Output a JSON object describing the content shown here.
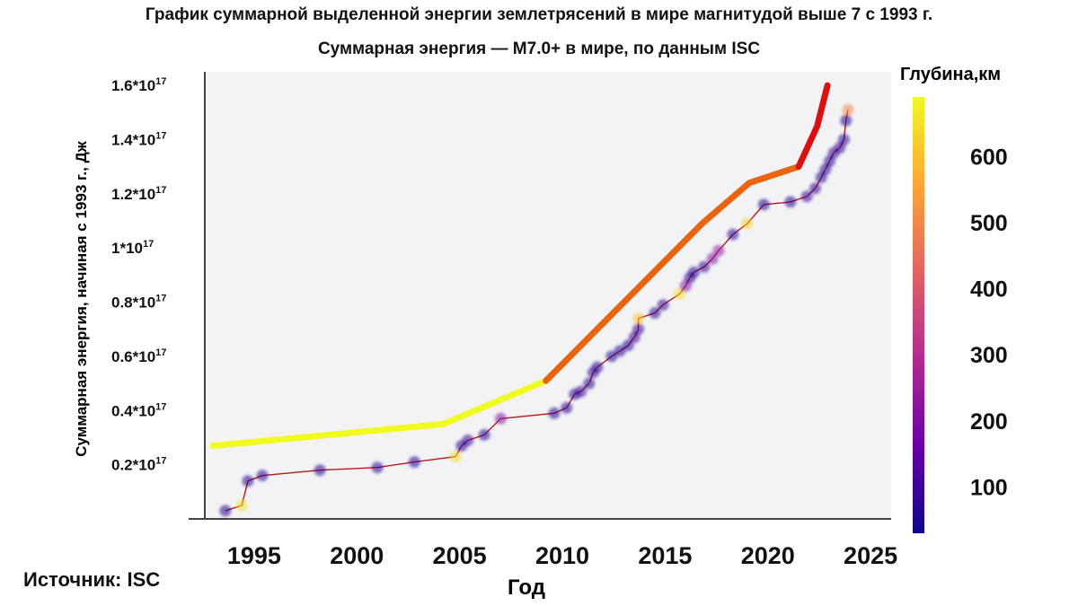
{
  "chart_data": {
    "type": "scatter",
    "title": "График суммарной выделенной энергии землетрясений в мире магнитудой выше 7 с 1993 г.",
    "subtitle": "Суммарная энергия — M7.0+ в мире, по данным ISC",
    "xlabel": "Год",
    "ylabel": "Суммарная энергия, начиная с 1993 г., Дж",
    "xlim": [
      1992.6,
      2026.0
    ],
    "ylim": [
      0.0,
      1.65
    ],
    "x_ticks": [
      1995,
      2000,
      2005,
      2010,
      2015,
      2020,
      2025
    ],
    "y_ticks": [
      {
        "value": 0.2,
        "label": "0.2*10",
        "exp": "17"
      },
      {
        "value": 0.4,
        "label": "0.4*10",
        "exp": "17"
      },
      {
        "value": 0.6,
        "label": "0.6*10",
        "exp": "17"
      },
      {
        "value": 0.8,
        "label": "0.8*10",
        "exp": "17"
      },
      {
        "value": 1.0,
        "label": "1*10",
        "exp": "17"
      },
      {
        "value": 1.2,
        "label": "1.2*10",
        "exp": "17"
      },
      {
        "value": 1.4,
        "label": "1.4*10",
        "exp": "17"
      },
      {
        "value": 1.6,
        "label": "1.6*10",
        "exp": "17"
      }
    ],
    "grid": false,
    "colorbar": {
      "label": "Глубина,км",
      "ticks": [
        100,
        200,
        300,
        400,
        500,
        600
      ],
      "range": [
        30,
        690
      ],
      "colors": [
        "#0d0887",
        "#6a00a8",
        "#b12a90",
        "#e16462",
        "#fca636",
        "#f0f921"
      ]
    },
    "series": [
      {
        "kind": "points",
        "line_color": "#b51a1a",
        "points": [
          {
            "x": 1993.6,
            "y": 0.03,
            "d": 60
          },
          {
            "x": 1994.4,
            "y": 0.05,
            "d": 650
          },
          {
            "x": 1994.7,
            "y": 0.14,
            "d": 60
          },
          {
            "x": 1995.4,
            "y": 0.16,
            "d": 60
          },
          {
            "x": 1998.2,
            "y": 0.18,
            "d": 60
          },
          {
            "x": 2001.0,
            "y": 0.19,
            "d": 60
          },
          {
            "x": 2002.8,
            "y": 0.21,
            "d": 60
          },
          {
            "x": 2004.8,
            "y": 0.23,
            "d": 640
          },
          {
            "x": 2005.1,
            "y": 0.27,
            "d": 60
          },
          {
            "x": 2005.4,
            "y": 0.29,
            "d": 80
          },
          {
            "x": 2006.2,
            "y": 0.31,
            "d": 60
          },
          {
            "x": 2007.0,
            "y": 0.37,
            "d": 200
          },
          {
            "x": 2009.6,
            "y": 0.39,
            "d": 60
          },
          {
            "x": 2010.2,
            "y": 0.41,
            "d": 60
          },
          {
            "x": 2010.6,
            "y": 0.46,
            "d": 60
          },
          {
            "x": 2010.9,
            "y": 0.47,
            "d": 80
          },
          {
            "x": 2011.3,
            "y": 0.5,
            "d": 60
          },
          {
            "x": 2011.5,
            "y": 0.54,
            "d": 80
          },
          {
            "x": 2011.7,
            "y": 0.56,
            "d": 60
          },
          {
            "x": 2012.4,
            "y": 0.6,
            "d": 60
          },
          {
            "x": 2012.8,
            "y": 0.62,
            "d": 60
          },
          {
            "x": 2013.2,
            "y": 0.64,
            "d": 60
          },
          {
            "x": 2013.5,
            "y": 0.67,
            "d": 80
          },
          {
            "x": 2013.7,
            "y": 0.7,
            "d": 80
          },
          {
            "x": 2013.7,
            "y": 0.74,
            "d": 610
          },
          {
            "x": 2014.5,
            "y": 0.76,
            "d": 60
          },
          {
            "x": 2014.9,
            "y": 0.79,
            "d": 80
          },
          {
            "x": 2015.7,
            "y": 0.83,
            "d": 650
          },
          {
            "x": 2016.0,
            "y": 0.86,
            "d": 200
          },
          {
            "x": 2016.2,
            "y": 0.89,
            "d": 80
          },
          {
            "x": 2016.4,
            "y": 0.91,
            "d": 60
          },
          {
            "x": 2016.9,
            "y": 0.93,
            "d": 80
          },
          {
            "x": 2017.3,
            "y": 0.96,
            "d": 200
          },
          {
            "x": 2017.6,
            "y": 0.99,
            "d": 230
          },
          {
            "x": 2018.3,
            "y": 1.05,
            "d": 60
          },
          {
            "x": 2019.0,
            "y": 1.09,
            "d": 620
          },
          {
            "x": 2019.8,
            "y": 1.16,
            "d": 60
          },
          {
            "x": 2021.1,
            "y": 1.17,
            "d": 60
          },
          {
            "x": 2021.9,
            "y": 1.19,
            "d": 80
          },
          {
            "x": 2022.3,
            "y": 1.22,
            "d": 80
          },
          {
            "x": 2022.6,
            "y": 1.26,
            "d": 60
          },
          {
            "x": 2022.8,
            "y": 1.29,
            "d": 60
          },
          {
            "x": 2023.0,
            "y": 1.32,
            "d": 60
          },
          {
            "x": 2023.2,
            "y": 1.35,
            "d": 80
          },
          {
            "x": 2023.5,
            "y": 1.37,
            "d": 80
          },
          {
            "x": 2023.7,
            "y": 1.4,
            "d": 60
          },
          {
            "x": 2023.8,
            "y": 1.47,
            "d": 60
          },
          {
            "x": 2023.9,
            "y": 1.51,
            "d": 500
          }
        ]
      },
      {
        "kind": "trend",
        "segments": [
          {
            "color": "#f0f921",
            "points": [
              [
                1993.0,
                0.27
              ],
              [
                2004.2,
                0.35
              ],
              [
                2009.2,
                0.51
              ]
            ]
          },
          {
            "color": "#e8640f",
            "points": [
              [
                2009.2,
                0.51
              ],
              [
                2016.8,
                1.09
              ],
              [
                2019.1,
                1.24
              ],
              [
                2021.5,
                1.3
              ]
            ]
          },
          {
            "color": "#d9120f",
            "points": [
              [
                2021.5,
                1.3
              ],
              [
                2022.4,
                1.45
              ],
              [
                2022.9,
                1.6
              ]
            ]
          }
        ]
      }
    ]
  },
  "source": "Источник: ISC"
}
